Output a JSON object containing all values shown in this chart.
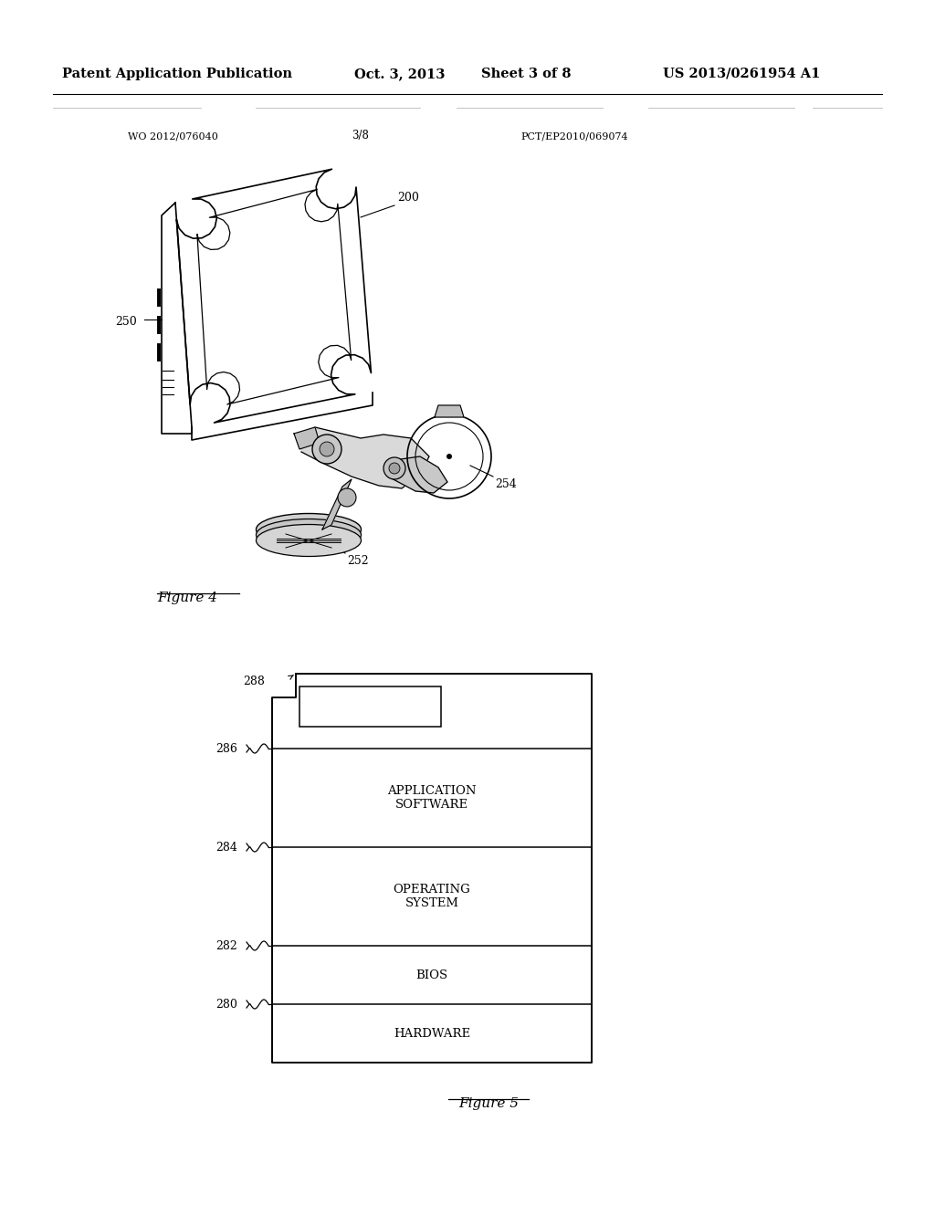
{
  "bg_color": "#ffffff",
  "header_line1": "Patent Application Publication",
  "header_date": "Oct. 3, 2013",
  "header_sheet": "Sheet 3 of 8",
  "header_patent": "US 2013/0261954 A1",
  "wo_number": "WO 2012/076040",
  "pct_number": "PCT/EP2010/069074",
  "sheet_num": "3/8",
  "fig4_label": "Figure 4",
  "fig5_label": "Figure 5",
  "layers": [
    "APPLICATION\nSOFTWARE",
    "OPERATING\nSYSTEM",
    "BIOS",
    "HARDWARE"
  ],
  "layer_labels": [
    "286",
    "284",
    "282",
    "280"
  ],
  "top_label": "288",
  "label_200": "200",
  "label_250": "250",
  "label_252": "252",
  "label_254": "254"
}
